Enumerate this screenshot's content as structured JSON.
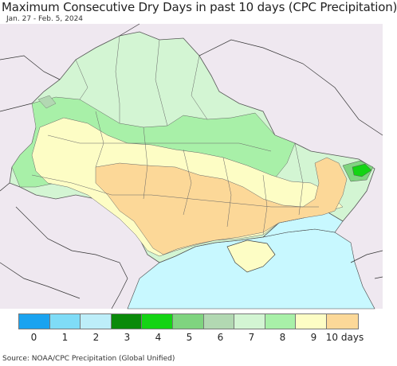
{
  "header": {
    "title": "Maximum Consecutive Dry Days in past 10 days (CPC Precipitation)",
    "date_range": "Jan. 27 - Feb. 5, 2024"
  },
  "legend": {
    "items": [
      {
        "label": "0",
        "color": "#1aa3f0"
      },
      {
        "label": "1",
        "color": "#7fdcf7"
      },
      {
        "label": "2",
        "color": "#bdeef9"
      },
      {
        "label": "3",
        "color": "#0a8a0a"
      },
      {
        "label": "4",
        "color": "#14d414"
      },
      {
        "label": "5",
        "color": "#7fd47f"
      },
      {
        "label": "6",
        "color": "#b2d8b2"
      },
      {
        "label": "7",
        "color": "#d3f5d3"
      },
      {
        "label": "8",
        "color": "#a8f0a8"
      },
      {
        "label": "9",
        "color": "#fdfdc5"
      },
      {
        "label": "10 days",
        "color": "#fcd898"
      }
    ]
  },
  "map": {
    "sea_color": "#c8f8ff",
    "outside_color": "#efe8f0"
  },
  "footer": {
    "source": "Source: NOAA/CPC Precipitation (Global Unified)"
  }
}
